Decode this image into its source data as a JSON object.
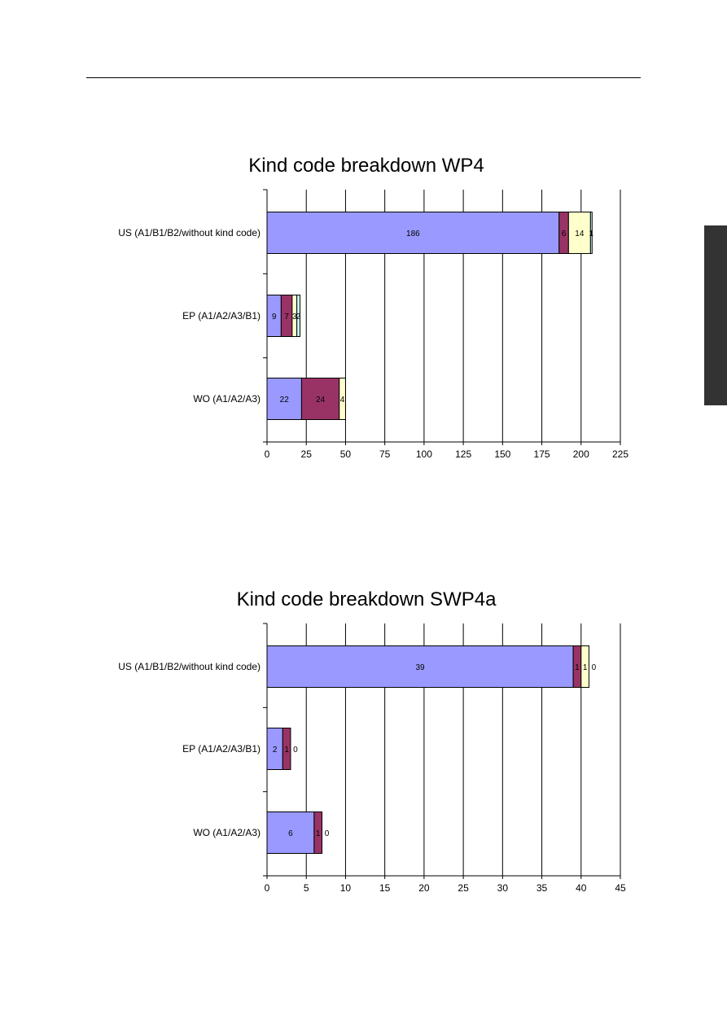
{
  "chart_data": [
    {
      "type": "bar",
      "orientation": "horizontal",
      "stacked": true,
      "title": "Kind code breakdown WP4",
      "categories": [
        "US (A1/B1/B2/without kind code)",
        "EP (A1/A2/A3/B1)",
        "WO (A1/A2/A3)"
      ],
      "series": [
        {
          "values": [
            186,
            9,
            22
          ]
        },
        {
          "values": [
            6,
            7,
            24
          ]
        },
        {
          "values": [
            14,
            3,
            4
          ]
        },
        {
          "values": [
            1,
            2,
            0
          ]
        }
      ],
      "segment_labels": [
        [
          "186",
          "6",
          "14",
          "1"
        ],
        [
          "9",
          "7",
          "3",
          "2"
        ],
        [
          "22",
          "24",
          "4",
          ""
        ]
      ],
      "xlim": [
        0,
        225
      ],
      "xticks": [
        "0",
        "25",
        "50",
        "75",
        "100",
        "125",
        "150",
        "175",
        "200",
        "225"
      ],
      "grid": true,
      "xlabel": "",
      "ylabel": ""
    },
    {
      "type": "bar",
      "orientation": "horizontal",
      "stacked": true,
      "title": "Kind code breakdown SWP4a",
      "categories": [
        "US (A1/B1/B2/without kind code)",
        "EP (A1/A2/A3/B1)",
        "WO (A1/A2/A3)"
      ],
      "series": [
        {
          "values": [
            39,
            2,
            6
          ]
        },
        {
          "values": [
            1,
            1,
            1
          ]
        },
        {
          "values": [
            1,
            0,
            0
          ]
        },
        {
          "values": [
            0,
            0,
            0
          ]
        }
      ],
      "segment_labels": [
        [
          "39",
          "1",
          "1",
          "0"
        ],
        [
          "2",
          "1",
          "0",
          ""
        ],
        [
          "6",
          "1",
          "0",
          ""
        ]
      ],
      "xlim": [
        0,
        45
      ],
      "xticks": [
        "0",
        "5",
        "10",
        "15",
        "20",
        "25",
        "30",
        "35",
        "40",
        "45"
      ],
      "grid": true,
      "xlabel": "",
      "ylabel": ""
    }
  ],
  "colors": {
    "series": [
      "#9999ff",
      "#993366",
      "#ffffcc",
      "#ccffff"
    ],
    "side_tab": "#333333"
  }
}
